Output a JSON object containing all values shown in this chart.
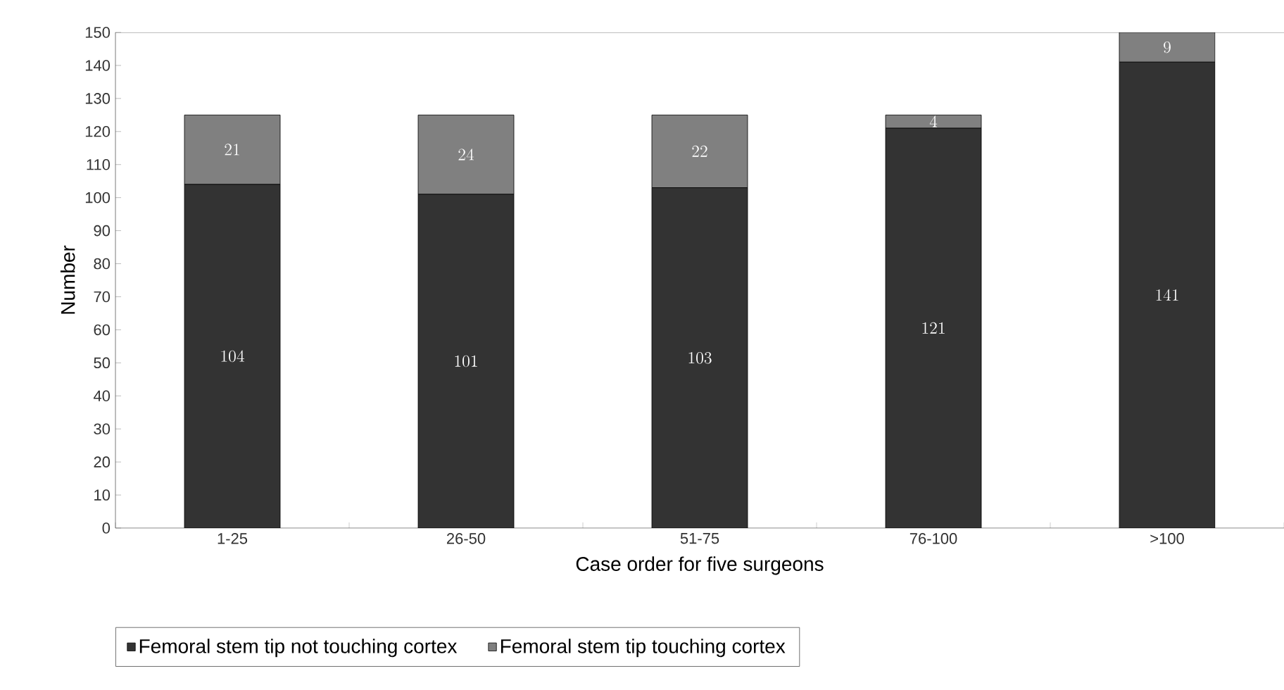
{
  "chart_data": {
    "type": "bar",
    "stacked": true,
    "xlabel": "Case order for five surgeons",
    "ylabel": "Number",
    "categories": [
      "1-25",
      "26-50",
      "51-75",
      "76-100",
      ">100"
    ],
    "series": [
      {
        "name": "Femoral stem tip not touching cortex",
        "color": "#333333",
        "values": [
          104,
          101,
          103,
          121,
          141
        ]
      },
      {
        "name": "Femoral stem tip touching cortex",
        "color": "#808080",
        "values": [
          21,
          24,
          22,
          4,
          9
        ]
      }
    ],
    "ylim": [
      0,
      150
    ],
    "yticks": [
      0,
      10,
      20,
      30,
      40,
      50,
      60,
      70,
      80,
      90,
      100,
      110,
      120,
      130,
      140,
      150
    ],
    "data_labels": true,
    "legend": "bottom",
    "grid": false
  }
}
